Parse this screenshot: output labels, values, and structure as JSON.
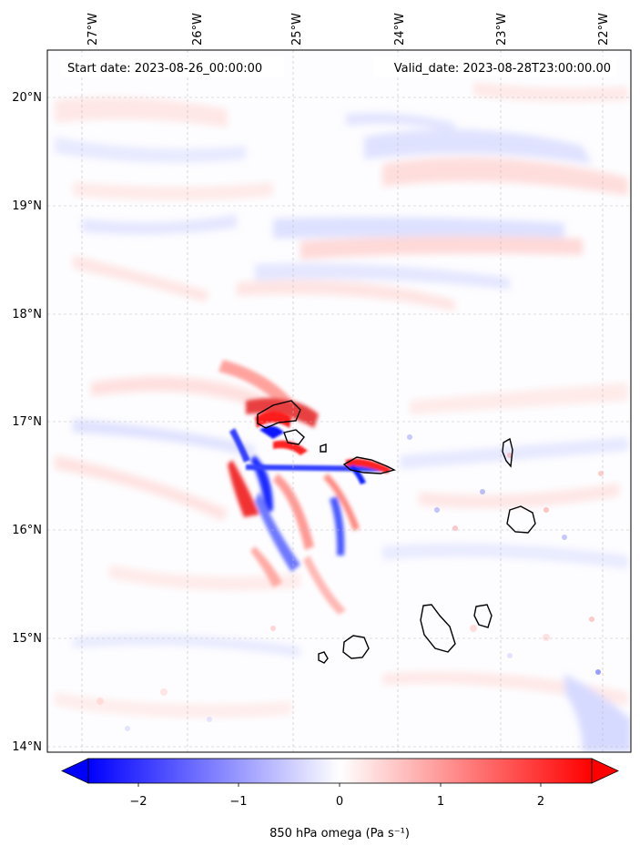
{
  "header": {
    "start_date": "Start date: 2023-08-26_00:00:00",
    "valid_date": "Valid_date: 2023-08-28T23:00:00.00"
  },
  "map": {
    "lon_labels": [
      "27°W",
      "26°W",
      "25°W",
      "24°W",
      "23°W",
      "22°W"
    ],
    "lat_labels": [
      "20°N",
      "19°N",
      "18°N",
      "17°N",
      "16°N",
      "15°N",
      "14°N"
    ],
    "extent": {
      "lon_min": -27.33,
      "lon_max": -21.7,
      "lat_min": 13.98,
      "lat_max": 20.42
    },
    "gridlines": true,
    "colormap": "bwr"
  },
  "colorbar": {
    "ticks": [
      "−2",
      "−1",
      "0",
      "1",
      "2"
    ],
    "min": -2.6,
    "max": 2.6,
    "extend": "both",
    "label": "850 hPa omega (Pa s⁻¹)",
    "colors": {
      "low": "#0000ff",
      "mid": "#ffffff",
      "high": "#ff0000"
    }
  },
  "islands": [
    "Santo Antão",
    "São Vicente",
    "São Nicolau",
    "Sal",
    "Boa Vista",
    "Maio",
    "Santiago",
    "Fogo",
    "Brava"
  ]
}
